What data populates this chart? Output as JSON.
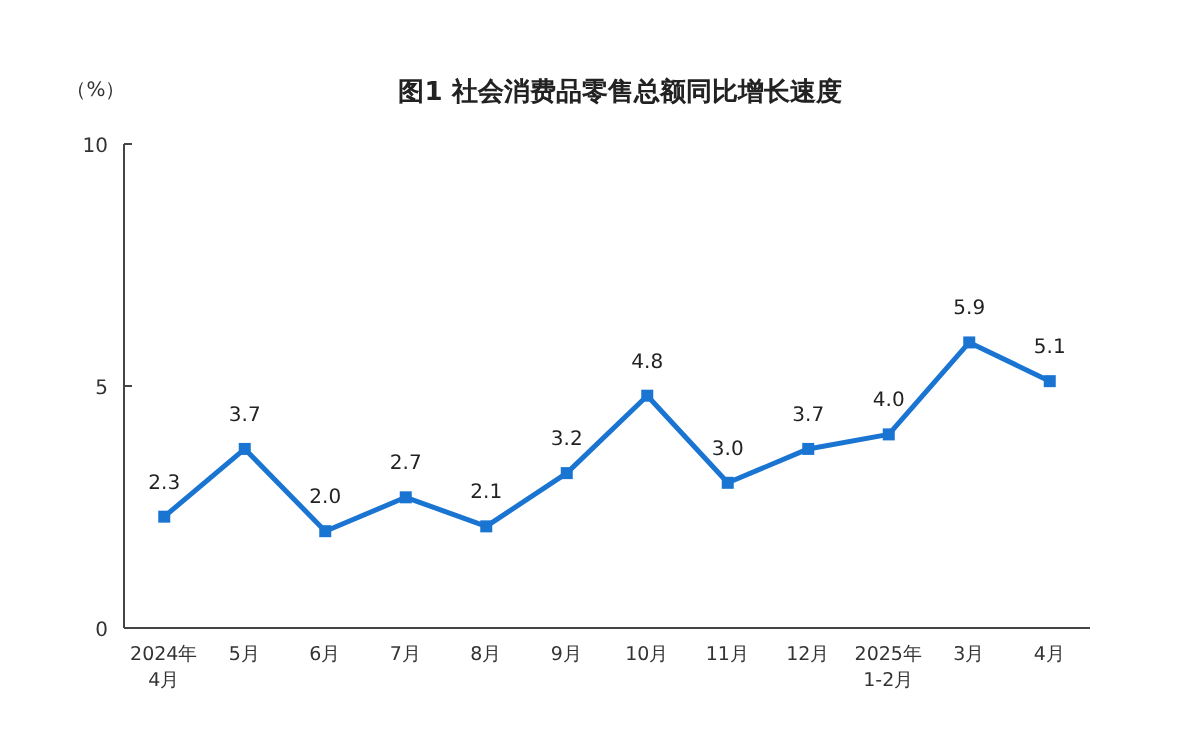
{
  "chart_data": {
    "type": "line",
    "title": "图1  社会消费品零售总额同比增长速度",
    "ylabel": "（%）",
    "categories": [
      "2024年\n4月",
      "5月",
      "6月",
      "7月",
      "8月",
      "9月",
      "10月",
      "11月",
      "12月",
      "2025年\n1-2月",
      "3月",
      "4月"
    ],
    "series": [
      {
        "color": "#1a75d2",
        "values": [
          2.3,
          3.7,
          2.0,
          2.7,
          2.1,
          3.2,
          4.8,
          3.0,
          3.7,
          4.0,
          5.9,
          5.1
        ],
        "value_labels": [
          "2.3",
          "3.7",
          "2.0",
          "2.7",
          "2.1",
          "3.2",
          "4.8",
          "3.0",
          "3.7",
          "4.0",
          "5.9",
          "5.1"
        ]
      }
    ],
    "ylim": [
      0,
      10
    ],
    "yticks": [
      0,
      5,
      10
    ],
    "grid": false,
    "marker": "square",
    "line_style": "solid"
  }
}
